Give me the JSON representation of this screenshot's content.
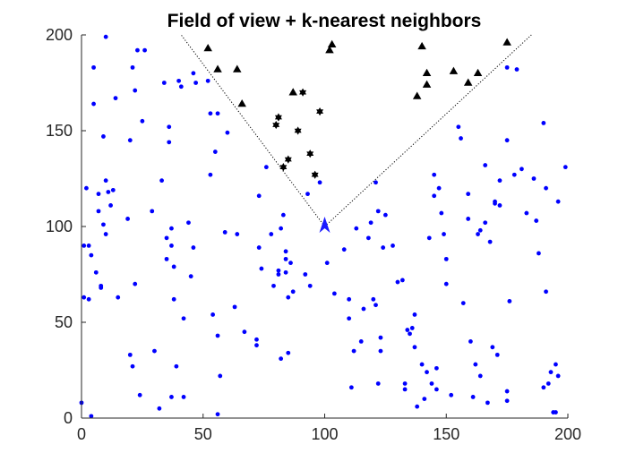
{
  "chart_data": {
    "type": "scatter",
    "title": "Field of view + k-nearest neighbors",
    "xlabel": "",
    "ylabel": "",
    "xlim": [
      0,
      200
    ],
    "ylim": [
      0,
      200
    ],
    "xticks": [
      "0",
      "50",
      "100",
      "150",
      "200"
    ],
    "yticks": [
      "0",
      "50",
      "100",
      "150",
      "200"
    ],
    "grid": false,
    "colors": {
      "points": "#0000ff",
      "agent": "#1a1aff",
      "neighbors": "#000000",
      "fov_lines": "#000000"
    },
    "agent": {
      "x": 100,
      "y": 100,
      "marker": "arrowhead"
    },
    "fov_lines": [
      {
        "x": [
          100,
          41
        ],
        "y": [
          100,
          200
        ]
      },
      {
        "x": [
          100,
          185
        ],
        "y": [
          100,
          200
        ]
      }
    ],
    "series": [
      {
        "marker": "dot",
        "points": [
          [
            1,
            90
          ],
          [
            1,
            63
          ],
          [
            0,
            8
          ],
          [
            2,
            120
          ],
          [
            3,
            90
          ],
          [
            3,
            62
          ],
          [
            4,
            1
          ],
          [
            4,
            85
          ],
          [
            5,
            183
          ],
          [
            5,
            164
          ],
          [
            6,
            76
          ],
          [
            7,
            108
          ],
          [
            7,
            117
          ],
          [
            8,
            68
          ],
          [
            8,
            69
          ],
          [
            9,
            147
          ],
          [
            9,
            101
          ],
          [
            10,
            199
          ],
          [
            10,
            124
          ],
          [
            10,
            96
          ],
          [
            11,
            118
          ],
          [
            12,
            111
          ],
          [
            13,
            119
          ],
          [
            14,
            167
          ],
          [
            15,
            63
          ],
          [
            19,
            104
          ],
          [
            20,
            33
          ],
          [
            20,
            145
          ],
          [
            21,
            27
          ],
          [
            21,
            183
          ],
          [
            22,
            171
          ],
          [
            22,
            70
          ],
          [
            23,
            192
          ],
          [
            24,
            12
          ],
          [
            25,
            155
          ],
          [
            26,
            192
          ],
          [
            29,
            108
          ],
          [
            30,
            35
          ],
          [
            32,
            5
          ],
          [
            33,
            124
          ],
          [
            34,
            175
          ],
          [
            35,
            94
          ],
          [
            35,
            83
          ],
          [
            36,
            152
          ],
          [
            36,
            144
          ],
          [
            37,
            11
          ],
          [
            37,
            99
          ],
          [
            37,
            90
          ],
          [
            38,
            62
          ],
          [
            38,
            79
          ],
          [
            39,
            27
          ],
          [
            40,
            176
          ],
          [
            41,
            173
          ],
          [
            42,
            11
          ],
          [
            42,
            52
          ],
          [
            44,
            102
          ],
          [
            45,
            74
          ],
          [
            46,
            180
          ],
          [
            46,
            89
          ],
          [
            47,
            175
          ],
          [
            52,
            176
          ],
          [
            53,
            159
          ],
          [
            53,
            127
          ],
          [
            54,
            54
          ],
          [
            55,
            139
          ],
          [
            56,
            159
          ],
          [
            56,
            43
          ],
          [
            56,
            2
          ],
          [
            57,
            22
          ],
          [
            59,
            97
          ],
          [
            60,
            149
          ],
          [
            63,
            58
          ],
          [
            64,
            96
          ],
          [
            67,
            45
          ],
          [
            72,
            41
          ],
          [
            72,
            38
          ],
          [
            73,
            116
          ],
          [
            73,
            89
          ],
          [
            74,
            78
          ],
          [
            76,
            131
          ],
          [
            78,
            96
          ],
          [
            79,
            69
          ],
          [
            81,
            75
          ],
          [
            81,
            77
          ],
          [
            82,
            99
          ],
          [
            82,
            31
          ],
          [
            83,
            106
          ],
          [
            84,
            83
          ],
          [
            84,
            87
          ],
          [
            84,
            76
          ],
          [
            85,
            34
          ],
          [
            85,
            63
          ],
          [
            86,
            81
          ],
          [
            87,
            66
          ],
          [
            92,
            75
          ],
          [
            93,
            117
          ],
          [
            94,
            69
          ],
          [
            98,
            123
          ],
          [
            101,
            81
          ],
          [
            104,
            65
          ],
          [
            108,
            88
          ],
          [
            110,
            52
          ],
          [
            111,
            16
          ],
          [
            112,
            35
          ],
          [
            113,
            99
          ],
          [
            115,
            40
          ],
          [
            116,
            57
          ],
          [
            118,
            94
          ],
          [
            119,
            102
          ],
          [
            120,
            62
          ],
          [
            121,
            123
          ],
          [
            121,
            59
          ],
          [
            122,
            108
          ],
          [
            122,
            18
          ],
          [
            123,
            35
          ],
          [
            123,
            42
          ],
          [
            124,
            89
          ],
          [
            125,
            106
          ],
          [
            128,
            90
          ],
          [
            130,
            71
          ],
          [
            132,
            72
          ],
          [
            133,
            18
          ],
          [
            133,
            15
          ],
          [
            134,
            46
          ],
          [
            135,
            44
          ],
          [
            136,
            47
          ],
          [
            137,
            54
          ],
          [
            137,
            37
          ],
          [
            138,
            6
          ],
          [
            140,
            28
          ],
          [
            141,
            10
          ],
          [
            142,
            24
          ],
          [
            143,
            94
          ],
          [
            144,
            18
          ],
          [
            145,
            116
          ],
          [
            145,
            127
          ],
          [
            146,
            15
          ],
          [
            146,
            26
          ],
          [
            147,
            120
          ],
          [
            148,
            107
          ],
          [
            149,
            96
          ],
          [
            150,
            83
          ],
          [
            150,
            70
          ],
          [
            152,
            12
          ],
          [
            155,
            152
          ],
          [
            156,
            146
          ],
          [
            157,
            60
          ],
          [
            159,
            104
          ],
          [
            159,
            117
          ],
          [
            160,
            40
          ],
          [
            161,
            11
          ],
          [
            162,
            28
          ],
          [
            163,
            96
          ],
          [
            164,
            98
          ],
          [
            164,
            22
          ],
          [
            166,
            102
          ],
          [
            166,
            132
          ],
          [
            167,
            8
          ],
          [
            168,
            92
          ],
          [
            169,
            37
          ],
          [
            170,
            113
          ],
          [
            170,
            112
          ],
          [
            171,
            33
          ],
          [
            172,
            124
          ],
          [
            172,
            111
          ],
          [
            175,
            145
          ],
          [
            175,
            14
          ],
          [
            175,
            183
          ],
          [
            175,
            9
          ],
          [
            176,
            61
          ],
          [
            178,
            127
          ],
          [
            181,
            130
          ],
          [
            183,
            107
          ],
          [
            186,
            125
          ],
          [
            187,
            103
          ],
          [
            188,
            86
          ],
          [
            190,
            16
          ],
          [
            190,
            154
          ],
          [
            191,
            66
          ],
          [
            191,
            120
          ],
          [
            192,
            18
          ],
          [
            193,
            24
          ],
          [
            194,
            3
          ],
          [
            195,
            28
          ],
          [
            196,
            113
          ],
          [
            196,
            22
          ],
          [
            199,
            131
          ],
          [
            195,
            3
          ],
          [
            179,
            182
          ],
          [
            110,
            62
          ]
        ]
      },
      {
        "marker": "hexagram",
        "points": [
          [
            80,
            153
          ],
          [
            81,
            157
          ],
          [
            83,
            131
          ],
          [
            85,
            135
          ],
          [
            89,
            150
          ],
          [
            91,
            170
          ],
          [
            94,
            138
          ],
          [
            96,
            127
          ],
          [
            98,
            160
          ]
        ]
      },
      {
        "marker": "triangle",
        "points": [
          [
            52,
            193
          ],
          [
            56,
            182
          ],
          [
            64,
            182
          ],
          [
            66,
            164
          ],
          [
            87,
            170
          ],
          [
            102,
            192
          ],
          [
            103,
            195
          ],
          [
            138,
            168
          ],
          [
            140,
            194
          ],
          [
            142,
            180
          ],
          [
            142,
            174
          ],
          [
            153,
            181
          ],
          [
            159,
            175
          ],
          [
            163,
            180
          ],
          [
            175,
            196
          ]
        ]
      }
    ]
  }
}
